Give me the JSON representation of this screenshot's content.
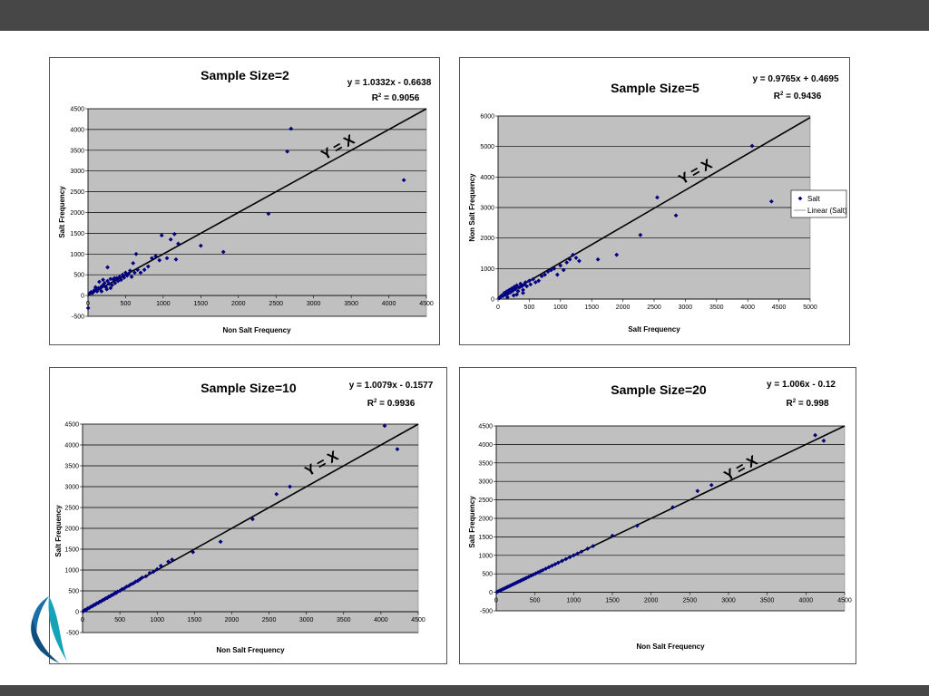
{
  "colors": {
    "bar": "#474747",
    "plot_bg": "#c0c0c0",
    "grid": "#000000",
    "marker": "#000080",
    "fit_line": "#000000",
    "logo_blue": "#1a6fa8",
    "logo_teal": "#16a3b8"
  },
  "chart_data": [
    {
      "type": "scatter",
      "title": "Sample Size=2",
      "equation": "y = 1.0332x - 0.6638",
      "r2_label": "R",
      "r2_value": " = 0.9056",
      "xlabel": "Non Salt Frequency",
      "ylabel": "Salt Frequency",
      "annotation": "Y = X",
      "xlim": [
        0,
        4500
      ],
      "ylim": [
        -500,
        4500
      ],
      "xticks": [
        "0",
        "500",
        "1000",
        "1500",
        "2000",
        "2500",
        "3000",
        "3500",
        "4000",
        "4500"
      ],
      "yticks": [
        "-500",
        "0",
        "500",
        "1000",
        "1500",
        "2000",
        "2500",
        "3000",
        "3500",
        "4000",
        "4500"
      ],
      "grid": true,
      "legend": null,
      "series": [
        {
          "points": [
            [
              2,
              -300
            ],
            [
              20,
              50
            ],
            [
              40,
              80
            ],
            [
              60,
              60
            ],
            [
              80,
              120
            ],
            [
              100,
              150
            ],
            [
              120,
              100
            ],
            [
              140,
              180
            ],
            [
              160,
              160
            ],
            [
              180,
              220
            ],
            [
              200,
              250
            ],
            [
              220,
              300
            ],
            [
              240,
              200
            ],
            [
              260,
              350
            ],
            [
              280,
              280
            ],
            [
              300,
              400
            ],
            [
              320,
              250
            ],
            [
              340,
              380
            ],
            [
              360,
              300
            ],
            [
              380,
              420
            ],
            [
              400,
              350
            ],
            [
              420,
              450
            ],
            [
              440,
              380
            ],
            [
              460,
              500
            ],
            [
              480,
              430
            ],
            [
              500,
              550
            ],
            [
              520,
              480
            ],
            [
              540,
              520
            ],
            [
              560,
              600
            ],
            [
              580,
              450
            ],
            [
              600,
              780
            ],
            [
              620,
              550
            ],
            [
              640,
              1000
            ],
            [
              660,
              620
            ],
            [
              700,
              550
            ],
            [
              750,
              620
            ],
            [
              800,
              700
            ],
            [
              850,
              900
            ],
            [
              900,
              950
            ],
            [
              950,
              850
            ],
            [
              980,
              1450
            ],
            [
              1050,
              900
            ],
            [
              1100,
              1350
            ],
            [
              1150,
              1480
            ],
            [
              1170,
              870
            ],
            [
              1200,
              1250
            ],
            [
              1500,
              1200
            ],
            [
              1800,
              1050
            ],
            [
              2400,
              1970
            ],
            [
              2650,
              3470
            ],
            [
              2700,
              4020
            ],
            [
              4200,
              2780
            ],
            [
              260,
              680
            ],
            [
              150,
              330
            ],
            [
              200,
              380
            ],
            [
              100,
              200
            ],
            [
              300,
              180
            ],
            [
              350,
              420
            ],
            [
              180,
              100
            ],
            [
              250,
              150
            ]
          ]
        }
      ],
      "line": [
        [
          0,
          0
        ],
        [
          4500,
          4500
        ]
      ]
    },
    {
      "type": "scatter",
      "title": "Sample Size=5",
      "equation": "y = 0.9765x + 0.4695",
      "r2_label": "R",
      "r2_value": " = 0.9436",
      "xlabel": "Salt Frequency",
      "ylabel": "Non Salt Frequency",
      "annotation": "Y = X",
      "xlim": [
        0,
        5000
      ],
      "ylim": [
        0,
        6000
      ],
      "xticks": [
        "0",
        "500",
        "1000",
        "1500",
        "2000",
        "2500",
        "3000",
        "3500",
        "4000",
        "4500",
        "5000"
      ],
      "yticks": [
        "0",
        "1000",
        "2000",
        "3000",
        "4000",
        "5000",
        "6000"
      ],
      "grid": true,
      "legend": [
        "Salt",
        "Linear (Salt)"
      ],
      "series": [
        {
          "name": "Salt",
          "points": [
            [
              20,
              30
            ],
            [
              40,
              80
            ],
            [
              60,
              120
            ],
            [
              80,
              100
            ],
            [
              100,
              200
            ],
            [
              120,
              150
            ],
            [
              140,
              250
            ],
            [
              160,
              180
            ],
            [
              180,
              300
            ],
            [
              200,
              220
            ],
            [
              220,
              350
            ],
            [
              240,
              280
            ],
            [
              260,
              400
            ],
            [
              280,
              330
            ],
            [
              300,
              450
            ],
            [
              320,
              260
            ],
            [
              340,
              380
            ],
            [
              360,
              500
            ],
            [
              380,
              420
            ],
            [
              400,
              300
            ],
            [
              420,
              480
            ],
            [
              440,
              550
            ],
            [
              460,
              420
            ],
            [
              500,
              600
            ],
            [
              520,
              480
            ],
            [
              560,
              650
            ],
            [
              600,
              550
            ],
            [
              650,
              600
            ],
            [
              700,
              750
            ],
            [
              750,
              800
            ],
            [
              800,
              900
            ],
            [
              850,
              950
            ],
            [
              900,
              1000
            ],
            [
              950,
              800
            ],
            [
              1000,
              1100
            ],
            [
              1050,
              950
            ],
            [
              1100,
              1200
            ],
            [
              1150,
              1300
            ],
            [
              1200,
              1450
            ],
            [
              1250,
              1350
            ],
            [
              1300,
              1250
            ],
            [
              1600,
              1300
            ],
            [
              1900,
              1450
            ],
            [
              2280,
              2100
            ],
            [
              2550,
              3330
            ],
            [
              2850,
              2740
            ],
            [
              4070,
              5020
            ],
            [
              4380,
              3200
            ],
            [
              300,
              150
            ],
            [
              250,
              120
            ],
            [
              150,
              60
            ],
            [
              400,
              200
            ]
          ]
        }
      ],
      "line": [
        [
          0,
          0
        ],
        [
          5000,
          5950
        ]
      ]
    },
    {
      "type": "scatter",
      "title": "Sample Size=10",
      "equation": "y = 1.0079x - 0.1577",
      "r2_label": "R",
      "r2_value": " = 0.9936",
      "xlabel": "Non Salt Frequency",
      "ylabel": "Salt Frequency",
      "annotation": "Y = X",
      "xlim": [
        0,
        4500
      ],
      "ylim": [
        -500,
        4500
      ],
      "xticks": [
        "0",
        "500",
        "1000",
        "1500",
        "2000",
        "2500",
        "3000",
        "3500",
        "4000",
        "4500"
      ],
      "yticks": [
        "-500",
        "0",
        "500",
        "1000",
        "1500",
        "2000",
        "2500",
        "3000",
        "3500",
        "4000",
        "4500"
      ],
      "grid": true,
      "legend": null,
      "series": [
        {
          "points": [
            [
              10,
              10
            ],
            [
              30,
              40
            ],
            [
              50,
              50
            ],
            [
              70,
              80
            ],
            [
              90,
              90
            ],
            [
              110,
              120
            ],
            [
              130,
              130
            ],
            [
              150,
              160
            ],
            [
              170,
              170
            ],
            [
              190,
              200
            ],
            [
              210,
              210
            ],
            [
              230,
              240
            ],
            [
              250,
              250
            ],
            [
              270,
              280
            ],
            [
              290,
              290
            ],
            [
              310,
              320
            ],
            [
              330,
              330
            ],
            [
              350,
              360
            ],
            [
              370,
              370
            ],
            [
              390,
              400
            ],
            [
              410,
              410
            ],
            [
              430,
              440
            ],
            [
              450,
              450
            ],
            [
              470,
              480
            ],
            [
              500,
              500
            ],
            [
              530,
              540
            ],
            [
              560,
              560
            ],
            [
              590,
              600
            ],
            [
              620,
              620
            ],
            [
              650,
              660
            ],
            [
              680,
              680
            ],
            [
              710,
              720
            ],
            [
              740,
              740
            ],
            [
              770,
              780
            ],
            [
              800,
              820
            ],
            [
              850,
              850
            ],
            [
              900,
              930
            ],
            [
              950,
              960
            ],
            [
              1000,
              1020
            ],
            [
              1050,
              1100
            ],
            [
              1150,
              1200
            ],
            [
              1200,
              1250
            ],
            [
              1480,
              1430
            ],
            [
              1850,
              1680
            ],
            [
              2280,
              2220
            ],
            [
              2600,
              2820
            ],
            [
              2780,
              3000
            ],
            [
              4050,
              4460
            ],
            [
              4220,
              3900
            ]
          ]
        }
      ],
      "line": [
        [
          0,
          0
        ],
        [
          4500,
          4500
        ]
      ]
    },
    {
      "type": "scatter",
      "title": "Sample Size=20",
      "equation": "y = 1.006x - 0.12",
      "r2_label": "R",
      "r2_value": " = 0.998",
      "xlabel": "Non Salt Frequency",
      "ylabel": "Salt Frequency",
      "annotation": "Y = X",
      "xlim": [
        0,
        4500
      ],
      "ylim": [
        -500,
        4500
      ],
      "xticks": [
        "0",
        "500",
        "1000",
        "1500",
        "2000",
        "2500",
        "3000",
        "3500",
        "4000",
        "4500"
      ],
      "yticks": [
        "-500",
        "0",
        "500",
        "1000",
        "1500",
        "2000",
        "2500",
        "3000",
        "3500",
        "4000",
        "4500"
      ],
      "grid": true,
      "legend": null,
      "series": [
        {
          "points": [
            [
              10,
              10
            ],
            [
              30,
              30
            ],
            [
              50,
              50
            ],
            [
              70,
              70
            ],
            [
              90,
              90
            ],
            [
              110,
              110
            ],
            [
              130,
              130
            ],
            [
              150,
              150
            ],
            [
              170,
              170
            ],
            [
              190,
              190
            ],
            [
              210,
              210
            ],
            [
              230,
              230
            ],
            [
              250,
              250
            ],
            [
              270,
              270
            ],
            [
              290,
              290
            ],
            [
              310,
              310
            ],
            [
              330,
              330
            ],
            [
              350,
              350
            ],
            [
              370,
              370
            ],
            [
              390,
              390
            ],
            [
              420,
              420
            ],
            [
              450,
              450
            ],
            [
              480,
              480
            ],
            [
              510,
              510
            ],
            [
              540,
              540
            ],
            [
              570,
              570
            ],
            [
              600,
              600
            ],
            [
              640,
              640
            ],
            [
              680,
              680
            ],
            [
              720,
              720
            ],
            [
              760,
              760
            ],
            [
              800,
              800
            ],
            [
              850,
              850
            ],
            [
              900,
              900
            ],
            [
              950,
              950
            ],
            [
              1000,
              1000
            ],
            [
              1050,
              1050
            ],
            [
              1100,
              1100
            ],
            [
              1180,
              1180
            ],
            [
              1250,
              1250
            ],
            [
              1500,
              1530
            ],
            [
              1820,
              1800
            ],
            [
              2280,
              2300
            ],
            [
              2600,
              2740
            ],
            [
              2780,
              2900
            ],
            [
              4120,
              4250
            ],
            [
              4230,
              4100
            ]
          ]
        }
      ],
      "line": [
        [
          0,
          0
        ],
        [
          4500,
          4500
        ]
      ]
    }
  ]
}
